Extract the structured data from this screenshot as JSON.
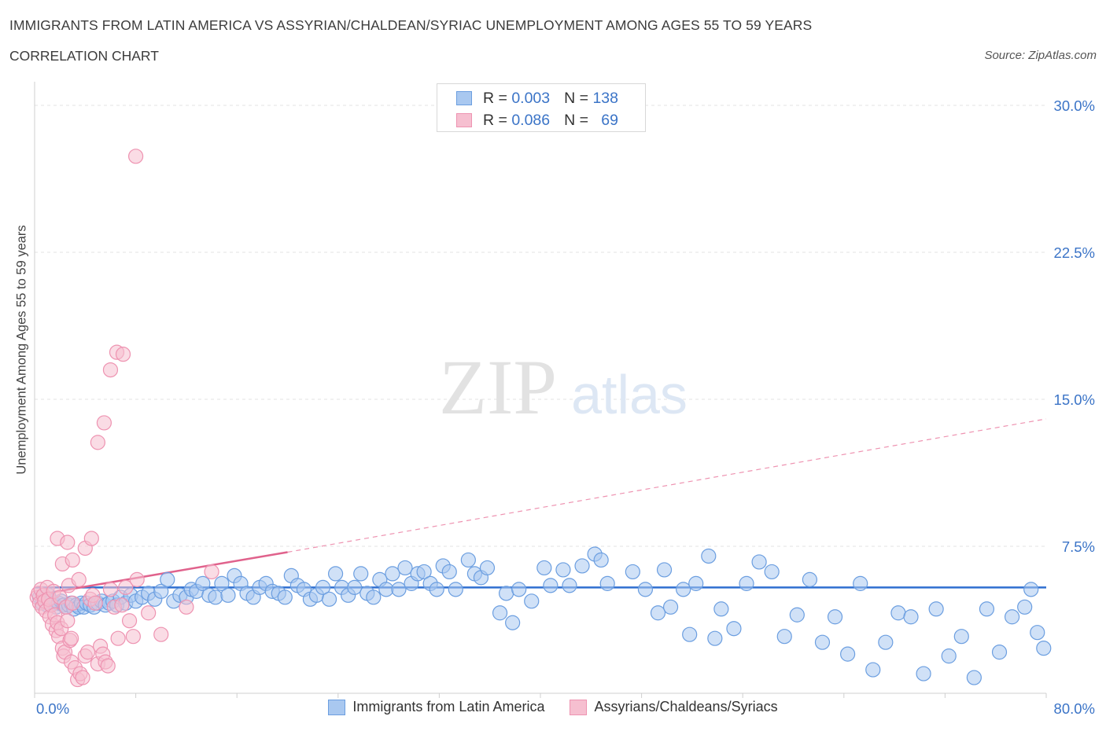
{
  "header": {
    "title": "IMMIGRANTS FROM LATIN AMERICA VS ASSYRIAN/CHALDEAN/SYRIAC UNEMPLOYMENT AMONG AGES 55 TO 59 YEARS",
    "subtitle": "CORRELATION CHART",
    "source": "Source: ZipAtlas.com"
  },
  "watermark": {
    "zip": "ZIP",
    "atlas": "atlas"
  },
  "legend_top": {
    "rows": [
      {
        "r_label": "R =",
        "r_value": "0.003",
        "n_label": "N =",
        "n_value": "138",
        "color": "#a9c8f0",
        "border": "#6b9ee0"
      },
      {
        "r_label": "R =",
        "r_value": "0.086",
        "n_label": "N =",
        "n_value": "69",
        "color": "#f6bfd0",
        "border": "#ee93b1"
      }
    ]
  },
  "legend_bottom": [
    {
      "label": "Immigrants from Latin America",
      "color": "#a9c8f0",
      "border": "#6b9ee0"
    },
    {
      "label": "Assyrians/Chaldeans/Syriacs",
      "color": "#f6bfd0",
      "border": "#ee93b1"
    }
  ],
  "chart_data": {
    "type": "scatter",
    "title": "IMMIGRANTS FROM LATIN AMERICA VS ASSYRIAN/CHALDEAN/SYRIAC UNEMPLOYMENT AMONG AGES 55 TO 59 YEARS",
    "xlabel": "",
    "ylabel": "Unemployment Among Ages 55 to 59 years",
    "xlim": [
      0,
      80
    ],
    "ylim": [
      0,
      30
    ],
    "x_tick_labels": [
      "0.0%",
      "80.0%"
    ],
    "y_tick_labels": [
      "7.5%",
      "15.0%",
      "22.5%",
      "30.0%"
    ],
    "y_ticks": [
      7.5,
      15.0,
      22.5,
      30.0
    ],
    "grid": true,
    "legend_position": "top-center",
    "series": [
      {
        "name": "Immigrants from Latin America",
        "color": "#6b9ee0",
        "fill": "#a9c8f0",
        "trend": {
          "x": [
            0,
            80
          ],
          "y": [
            5.4,
            5.4
          ],
          "style": "solid"
        },
        "points": [
          [
            0.4,
            4.9
          ],
          [
            0.6,
            4.6
          ],
          [
            0.8,
            4.8
          ],
          [
            1.0,
            4.5
          ],
          [
            1.1,
            5.0
          ],
          [
            1.3,
            4.7
          ],
          [
            1.5,
            4.6
          ],
          [
            1.7,
            4.4
          ],
          [
            1.9,
            4.6
          ],
          [
            2.1,
            4.7
          ],
          [
            2.3,
            4.5
          ],
          [
            2.5,
            4.4
          ],
          [
            2.7,
            4.5
          ],
          [
            2.9,
            4.6
          ],
          [
            3.1,
            4.3
          ],
          [
            3.3,
            4.5
          ],
          [
            3.5,
            4.4
          ],
          [
            3.7,
            4.6
          ],
          [
            3.9,
            4.4
          ],
          [
            4.1,
            4.6
          ],
          [
            4.4,
            4.5
          ],
          [
            4.7,
            4.4
          ],
          [
            5.0,
            4.6
          ],
          [
            5.3,
            4.7
          ],
          [
            5.6,
            4.5
          ],
          [
            5.9,
            4.6
          ],
          [
            6.2,
            4.7
          ],
          [
            6.5,
            4.5
          ],
          [
            6.8,
            4.9
          ],
          [
            7.2,
            4.6
          ],
          [
            7.6,
            5.0
          ],
          [
            8.0,
            4.7
          ],
          [
            8.5,
            4.9
          ],
          [
            9.0,
            5.1
          ],
          [
            9.5,
            4.8
          ],
          [
            10.0,
            5.2
          ],
          [
            10.5,
            5.8
          ],
          [
            11.0,
            4.7
          ],
          [
            11.5,
            5.0
          ],
          [
            12.0,
            4.9
          ],
          [
            12.4,
            5.3
          ],
          [
            12.8,
            5.2
          ],
          [
            13.3,
            5.6
          ],
          [
            13.8,
            5.0
          ],
          [
            14.3,
            4.9
          ],
          [
            14.8,
            5.6
          ],
          [
            15.3,
            5.0
          ],
          [
            15.8,
            6.0
          ],
          [
            16.3,
            5.6
          ],
          [
            16.8,
            5.1
          ],
          [
            17.3,
            4.9
          ],
          [
            17.8,
            5.4
          ],
          [
            18.3,
            5.6
          ],
          [
            18.8,
            5.2
          ],
          [
            19.3,
            5.1
          ],
          [
            19.8,
            4.9
          ],
          [
            20.3,
            6.0
          ],
          [
            20.8,
            5.5
          ],
          [
            21.3,
            5.3
          ],
          [
            21.8,
            4.8
          ],
          [
            22.3,
            5.0
          ],
          [
            22.8,
            5.4
          ],
          [
            23.3,
            4.8
          ],
          [
            23.8,
            6.1
          ],
          [
            24.3,
            5.4
          ],
          [
            24.8,
            5.0
          ],
          [
            25.3,
            5.4
          ],
          [
            25.8,
            6.1
          ],
          [
            26.3,
            5.1
          ],
          [
            26.8,
            4.9
          ],
          [
            27.3,
            5.8
          ],
          [
            27.8,
            5.3
          ],
          [
            28.3,
            6.1
          ],
          [
            28.8,
            5.3
          ],
          [
            29.3,
            6.4
          ],
          [
            29.8,
            5.6
          ],
          [
            30.3,
            6.1
          ],
          [
            30.8,
            6.2
          ],
          [
            31.3,
            5.6
          ],
          [
            31.8,
            5.3
          ],
          [
            32.3,
            6.5
          ],
          [
            32.8,
            6.2
          ],
          [
            33.3,
            5.3
          ],
          [
            34.3,
            6.8
          ],
          [
            34.8,
            6.1
          ],
          [
            35.3,
            5.9
          ],
          [
            35.8,
            6.4
          ],
          [
            36.8,
            4.1
          ],
          [
            37.3,
            5.1
          ],
          [
            37.8,
            3.6
          ],
          [
            38.3,
            5.3
          ],
          [
            39.3,
            4.7
          ],
          [
            40.3,
            6.4
          ],
          [
            40.8,
            5.5
          ],
          [
            41.8,
            6.3
          ],
          [
            42.3,
            5.5
          ],
          [
            43.3,
            6.5
          ],
          [
            44.3,
            7.1
          ],
          [
            44.8,
            6.8
          ],
          [
            45.3,
            5.6
          ],
          [
            47.3,
            6.2
          ],
          [
            48.3,
            5.3
          ],
          [
            49.3,
            4.1
          ],
          [
            49.8,
            6.3
          ],
          [
            51.3,
            5.3
          ],
          [
            52.3,
            5.6
          ],
          [
            53.3,
            7.0
          ],
          [
            54.3,
            4.3
          ],
          [
            55.3,
            3.3
          ],
          [
            56.3,
            5.6
          ],
          [
            57.3,
            6.7
          ],
          [
            58.3,
            6.2
          ],
          [
            59.3,
            2.9
          ],
          [
            60.3,
            4.0
          ],
          [
            61.3,
            5.8
          ],
          [
            62.3,
            2.6
          ],
          [
            63.3,
            3.9
          ],
          [
            64.3,
            2.0
          ],
          [
            65.3,
            5.6
          ],
          [
            66.3,
            1.2
          ],
          [
            67.3,
            2.6
          ],
          [
            68.3,
            4.1
          ],
          [
            69.3,
            3.9
          ],
          [
            70.3,
            1.0
          ],
          [
            71.3,
            4.3
          ],
          [
            72.3,
            1.9
          ],
          [
            73.3,
            2.9
          ],
          [
            74.3,
            0.8
          ],
          [
            75.3,
            4.3
          ],
          [
            76.3,
            2.1
          ],
          [
            77.3,
            3.9
          ],
          [
            78.3,
            4.4
          ],
          [
            78.8,
            5.3
          ],
          [
            79.3,
            3.1
          ],
          [
            79.8,
            2.3
          ],
          [
            50.3,
            4.4
          ],
          [
            51.8,
            3.0
          ],
          [
            53.8,
            2.8
          ]
        ]
      },
      {
        "name": "Assyrians/Chaldeans/Syriacs",
        "color": "#ee93b1",
        "fill": "#f6bfd0",
        "trend": {
          "x": [
            0,
            20
          ],
          "y": [
            5.0,
            7.2
          ],
          "style": "solid",
          "extended": {
            "x": [
              20,
              80
            ],
            "y": [
              7.2,
              14.0
            ],
            "style": "dashed"
          }
        },
        "points": [
          [
            0.2,
            4.9
          ],
          [
            0.3,
            5.1
          ],
          [
            0.4,
            4.6
          ],
          [
            0.5,
            5.3
          ],
          [
            0.6,
            4.4
          ],
          [
            0.7,
            5.0
          ],
          [
            0.8,
            4.7
          ],
          [
            0.9,
            4.2
          ],
          [
            1.0,
            5.4
          ],
          [
            1.1,
            4.8
          ],
          [
            1.2,
            3.9
          ],
          [
            1.3,
            4.5
          ],
          [
            1.4,
            3.5
          ],
          [
            1.5,
            5.2
          ],
          [
            1.6,
            4.0
          ],
          [
            1.7,
            3.2
          ],
          [
            1.8,
            3.6
          ],
          [
            1.9,
            2.9
          ],
          [
            2.0,
            4.9
          ],
          [
            2.1,
            3.3
          ],
          [
            2.2,
            2.3
          ],
          [
            2.3,
            1.9
          ],
          [
            2.4,
            2.1
          ],
          [
            2.5,
            4.4
          ],
          [
            2.6,
            3.7
          ],
          [
            2.7,
            5.5
          ],
          [
            2.8,
            2.7
          ],
          [
            2.9,
            1.6
          ],
          [
            3.0,
            4.6
          ],
          [
            3.2,
            1.3
          ],
          [
            3.4,
            0.7
          ],
          [
            3.6,
            1.0
          ],
          [
            3.8,
            0.8
          ],
          [
            4.0,
            1.9
          ],
          [
            4.2,
            2.1
          ],
          [
            4.4,
            4.8
          ],
          [
            4.6,
            5.0
          ],
          [
            4.8,
            4.6
          ],
          [
            5.0,
            1.5
          ],
          [
            5.2,
            2.4
          ],
          [
            5.4,
            2.0
          ],
          [
            5.6,
            1.6
          ],
          [
            5.8,
            1.4
          ],
          [
            6.0,
            5.3
          ],
          [
            6.3,
            4.4
          ],
          [
            6.6,
            2.8
          ],
          [
            6.9,
            4.5
          ],
          [
            7.2,
            5.4
          ],
          [
            7.5,
            3.7
          ],
          [
            7.8,
            2.9
          ],
          [
            8.1,
            5.8
          ],
          [
            9.0,
            4.1
          ],
          [
            10.0,
            3.0
          ],
          [
            12.0,
            4.4
          ],
          [
            14.0,
            6.2
          ],
          [
            1.8,
            7.9
          ],
          [
            2.2,
            6.6
          ],
          [
            2.6,
            7.7
          ],
          [
            3.0,
            6.8
          ],
          [
            3.5,
            5.8
          ],
          [
            4.0,
            7.4
          ],
          [
            4.5,
            7.9
          ],
          [
            5.0,
            12.8
          ],
          [
            5.5,
            13.8
          ],
          [
            6.0,
            16.5
          ],
          [
            6.5,
            17.4
          ],
          [
            7.0,
            17.3
          ],
          [
            8.0,
            27.4
          ],
          [
            2.9,
            2.8
          ]
        ]
      }
    ]
  }
}
